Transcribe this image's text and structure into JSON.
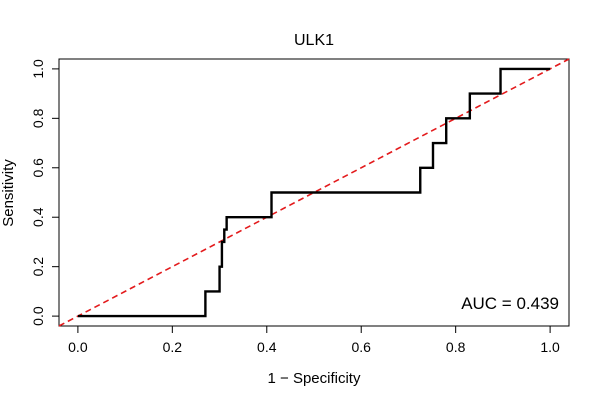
{
  "chart_data": {
    "type": "line",
    "title": "ULK1",
    "xlabel": "1 − Specificity",
    "ylabel": "Sensitivity",
    "xlim": [
      -0.04,
      1.04
    ],
    "ylim": [
      -0.04,
      1.04
    ],
    "xticks": [
      "0.0",
      "0.2",
      "0.4",
      "0.6",
      "0.8",
      "1.0"
    ],
    "yticks": [
      "0.0",
      "0.2",
      "0.4",
      "0.6",
      "0.8",
      "1.0"
    ],
    "grid": false,
    "series": [
      {
        "type": "step",
        "color": "#000000",
        "x": [
          0.0,
          0.27,
          0.27,
          0.3,
          0.3,
          0.305,
          0.305,
          0.31,
          0.31,
          0.315,
          0.315,
          0.41,
          0.41,
          0.725,
          0.725,
          0.752,
          0.752,
          0.78,
          0.78,
          0.83,
          0.83,
          0.895,
          0.895,
          1.0
        ],
        "y": [
          0.0,
          0.0,
          0.1,
          0.1,
          0.2,
          0.2,
          0.3,
          0.3,
          0.35,
          0.35,
          0.4,
          0.4,
          0.5,
          0.5,
          0.6,
          0.6,
          0.7,
          0.7,
          0.8,
          0.8,
          0.9,
          0.9,
          1.0,
          1.0
        ]
      }
    ],
    "reference_line": {
      "x": [
        -0.04,
        1.04
      ],
      "y": [
        -0.04,
        1.04
      ],
      "color": "#e31a1c",
      "style": "dashed"
    },
    "annotation": "AUC = 0.439"
  }
}
